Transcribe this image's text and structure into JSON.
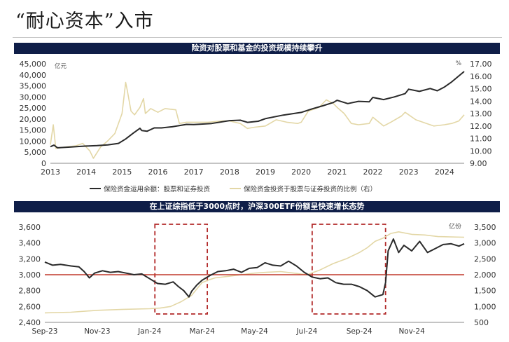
{
  "page": {
    "title": "“耐心资本”入市"
  },
  "colors": {
    "banner": "#0f1e48",
    "dark_series": "#2a2a2a",
    "light_series": "#e3d7a6",
    "baseline": "#c0392b",
    "dashed_box": "#b22a2a"
  },
  "chart_data": [
    {
      "type": "line",
      "title": "险资对股票和基金的投资规模持续攀升",
      "left_unit": "亿元",
      "right_unit": "%",
      "xlim": [
        2013,
        2024.55
      ],
      "x_ticks": [
        "2013",
        "2014",
        "2015",
        "2016",
        "2017",
        "2018",
        "2019",
        "2020",
        "2021",
        "2022",
        "2023",
        "2024"
      ],
      "ylim_left": [
        0,
        45000
      ],
      "ylim_right": [
        9,
        17
      ],
      "y_ticks_left": [
        "0",
        "5,000",
        "10,000",
        "15,000",
        "20,000",
        "25,000",
        "30,000",
        "35,000",
        "40,000",
        "45,000"
      ],
      "y_ticks_right": [
        "9.00",
        "10.00",
        "11.00",
        "12.00",
        "13.00",
        "14.00",
        "15.00",
        "16.00",
        "17.00"
      ],
      "grid": false,
      "legend_position": "bottom",
      "series": [
        {
          "name": "保险资金运用余额：股票和证券投资",
          "axis": "left",
          "color": "#2a2a2a",
          "points": [
            [
              2013.0,
              7500
            ],
            [
              2013.1,
              8200
            ],
            [
              2013.2,
              7000
            ],
            [
              2013.5,
              7300
            ],
            [
              2013.8,
              7600
            ],
            [
              2014.0,
              7800
            ],
            [
              2014.3,
              8000
            ],
            [
              2014.6,
              8300
            ],
            [
              2014.9,
              9000
            ],
            [
              2015.1,
              11000
            ],
            [
              2015.3,
              13500
            ],
            [
              2015.5,
              15800
            ],
            [
              2015.55,
              14800
            ],
            [
              2015.7,
              14500
            ],
            [
              2015.9,
              16000
            ],
            [
              2016.1,
              16000
            ],
            [
              2016.4,
              16500
            ],
            [
              2016.8,
              17600
            ],
            [
              2017.0,
              17500
            ],
            [
              2017.5,
              18000
            ],
            [
              2018.0,
              19300
            ],
            [
              2018.3,
              19500
            ],
            [
              2018.5,
              18500
            ],
            [
              2018.8,
              19000
            ],
            [
              2019.0,
              20200
            ],
            [
              2019.5,
              21800
            ],
            [
              2020.0,
              23000
            ],
            [
              2020.3,
              24600
            ],
            [
              2020.6,
              26000
            ],
            [
              2020.9,
              27500
            ],
            [
              2021.0,
              28500
            ],
            [
              2021.3,
              27000
            ],
            [
              2021.6,
              28000
            ],
            [
              2021.9,
              27800
            ],
            [
              2022.0,
              29800
            ],
            [
              2022.3,
              28800
            ],
            [
              2022.6,
              30000
            ],
            [
              2022.9,
              31500
            ],
            [
              2023.0,
              33500
            ],
            [
              2023.3,
              32500
            ],
            [
              2023.6,
              33800
            ],
            [
              2023.8,
              32800
            ],
            [
              2024.0,
              34500
            ],
            [
              2024.2,
              36800
            ],
            [
              2024.4,
              39500
            ],
            [
              2024.55,
              41500
            ]
          ]
        },
        {
          "name": "保险资金投资于股票与证券投资的比例（右）",
          "axis": "right",
          "color": "#e3d7a6",
          "points": [
            [
              2013.0,
              10.5
            ],
            [
              2013.08,
              12.1
            ],
            [
              2013.15,
              10.2
            ],
            [
              2013.4,
              10.3
            ],
            [
              2013.7,
              10.4
            ],
            [
              2013.9,
              10.6
            ],
            [
              2014.1,
              10.0
            ],
            [
              2014.2,
              9.4
            ],
            [
              2014.4,
              10.3
            ],
            [
              2014.6,
              10.8
            ],
            [
              2014.8,
              11.4
            ],
            [
              2015.0,
              13.0
            ],
            [
              2015.1,
              15.5
            ],
            [
              2015.15,
              14.8
            ],
            [
              2015.25,
              13.2
            ],
            [
              2015.35,
              12.9
            ],
            [
              2015.5,
              13.5
            ],
            [
              2015.6,
              14.2
            ],
            [
              2015.65,
              13.0
            ],
            [
              2015.8,
              13.4
            ],
            [
              2016.0,
              13.1
            ],
            [
              2016.2,
              13.4
            ],
            [
              2016.5,
              13.3
            ],
            [
              2016.6,
              12.2
            ],
            [
              2016.8,
              12.3
            ],
            [
              2017.0,
              12.3
            ],
            [
              2017.4,
              12.3
            ],
            [
              2017.8,
              12.4
            ],
            [
              2018.0,
              12.4
            ],
            [
              2018.3,
              12.2
            ],
            [
              2018.5,
              11.8
            ],
            [
              2018.7,
              11.9
            ],
            [
              2019.0,
              12.0
            ],
            [
              2019.3,
              12.5
            ],
            [
              2019.6,
              12.3
            ],
            [
              2019.9,
              12.2
            ],
            [
              2020.0,
              12.3
            ],
            [
              2020.2,
              13.2
            ],
            [
              2020.5,
              13.5
            ],
            [
              2020.7,
              14.1
            ],
            [
              2020.9,
              13.8
            ],
            [
              2021.0,
              13.5
            ],
            [
              2021.2,
              13.0
            ],
            [
              2021.4,
              12.2
            ],
            [
              2021.6,
              12.1
            ],
            [
              2021.9,
              12.2
            ],
            [
              2022.0,
              12.7
            ],
            [
              2022.3,
              12.0
            ],
            [
              2022.5,
              12.3
            ],
            [
              2022.8,
              12.8
            ],
            [
              2022.9,
              13.1
            ],
            [
              2023.0,
              12.9
            ],
            [
              2023.2,
              12.5
            ],
            [
              2023.5,
              12.2
            ],
            [
              2023.7,
              12.0
            ],
            [
              2024.0,
              12.1
            ],
            [
              2024.2,
              12.2
            ],
            [
              2024.4,
              12.4
            ],
            [
              2024.55,
              12.9
            ]
          ]
        }
      ]
    },
    {
      "type": "line",
      "title": "在上证综指低于3000点时，沪深300ETF份额呈快速增长态势",
      "right_unit": "亿份",
      "x_ticks": [
        "Sep-23",
        "Nov-23",
        "Jan-24",
        "Mar-24",
        "May-24",
        "Jul-24",
        "Sep-24",
        "Nov-24"
      ],
      "xlim": [
        0,
        16
      ],
      "ylim_left": [
        2400,
        3600
      ],
      "ylim_right": [
        500,
        3500
      ],
      "y_ticks_left": [
        "2,400",
        "2,600",
        "2,800",
        "3,000",
        "3,200",
        "3,400",
        "3,600"
      ],
      "y_ticks_right": [
        "500",
        "1,000",
        "1,500",
        "2,000",
        "2,500",
        "3,000",
        "3,500"
      ],
      "reference_line": 3000,
      "highlight_ranges": [
        [
          4.2,
          6.2
        ],
        [
          10.2,
          13.0
        ]
      ],
      "grid": false,
      "series": [
        {
          "name": "上证综指",
          "axis": "left",
          "color": "#2a2a2a",
          "points": [
            [
              0,
              3160
            ],
            [
              0.3,
              3120
            ],
            [
              0.6,
              3130
            ],
            [
              1.0,
              3110
            ],
            [
              1.3,
              3100
            ],
            [
              1.5,
              3040
            ],
            [
              1.7,
              2960
            ],
            [
              1.9,
              3020
            ],
            [
              2.2,
              3050
            ],
            [
              2.5,
              3030
            ],
            [
              2.8,
              3040
            ],
            [
              3.1,
              3020
            ],
            [
              3.4,
              3000
            ],
            [
              3.7,
              3010
            ],
            [
              4.0,
              2950
            ],
            [
              4.3,
              2890
            ],
            [
              4.6,
              2880
            ],
            [
              4.9,
              2910
            ],
            [
              5.1,
              2850
            ],
            [
              5.3,
              2800
            ],
            [
              5.5,
              2720
            ],
            [
              5.6,
              2790
            ],
            [
              5.8,
              2870
            ],
            [
              6.0,
              2930
            ],
            [
              6.3,
              2990
            ],
            [
              6.6,
              3040
            ],
            [
              6.9,
              3050
            ],
            [
              7.2,
              3070
            ],
            [
              7.5,
              3030
            ],
            [
              7.8,
              3080
            ],
            [
              8.1,
              3090
            ],
            [
              8.4,
              3150
            ],
            [
              8.7,
              3120
            ],
            [
              9.0,
              3110
            ],
            [
              9.3,
              3170
            ],
            [
              9.6,
              3110
            ],
            [
              9.9,
              3030
            ],
            [
              10.2,
              2970
            ],
            [
              10.5,
              2950
            ],
            [
              10.8,
              2960
            ],
            [
              11.1,
              2900
            ],
            [
              11.4,
              2880
            ],
            [
              11.7,
              2880
            ],
            [
              12.0,
              2850
            ],
            [
              12.3,
              2800
            ],
            [
              12.6,
              2720
            ],
            [
              12.9,
              2750
            ],
            [
              13.0,
              2900
            ],
            [
              13.1,
              3300
            ],
            [
              13.3,
              3450
            ],
            [
              13.5,
              3280
            ],
            [
              13.7,
              3370
            ],
            [
              14.0,
              3300
            ],
            [
              14.3,
              3420
            ],
            [
              14.6,
              3280
            ],
            [
              14.9,
              3330
            ],
            [
              15.2,
              3380
            ],
            [
              15.5,
              3390
            ],
            [
              15.8,
              3360
            ],
            [
              16.0,
              3390
            ]
          ]
        },
        {
          "name": "沪深300ETF份额",
          "axis": "right",
          "color": "#e3d7a6",
          "points": [
            [
              0,
              800
            ],
            [
              1.0,
              820
            ],
            [
              2.0,
              880
            ],
            [
              3.0,
              910
            ],
            [
              4.0,
              930
            ],
            [
              4.4,
              950
            ],
            [
              4.8,
              1000
            ],
            [
              5.2,
              1150
            ],
            [
              5.6,
              1350
            ],
            [
              6.0,
              1750
            ],
            [
              6.3,
              1850
            ],
            [
              6.5,
              1900
            ],
            [
              7.0,
              1950
            ],
            [
              7.5,
              2000
            ],
            [
              8.0,
              2050
            ],
            [
              8.5,
              2080
            ],
            [
              9.0,
              2100
            ],
            [
              9.5,
              2050
            ],
            [
              10.0,
              2000
            ],
            [
              10.5,
              2150
            ],
            [
              11.0,
              2350
            ],
            [
              11.5,
              2500
            ],
            [
              12.0,
              2700
            ],
            [
              12.3,
              2850
            ],
            [
              12.6,
              3050
            ],
            [
              12.9,
              3150
            ],
            [
              13.2,
              3300
            ],
            [
              13.5,
              3350
            ],
            [
              14.0,
              3270
            ],
            [
              14.5,
              3250
            ],
            [
              15.0,
              3200
            ],
            [
              16.0,
              3180
            ]
          ]
        }
      ]
    }
  ]
}
